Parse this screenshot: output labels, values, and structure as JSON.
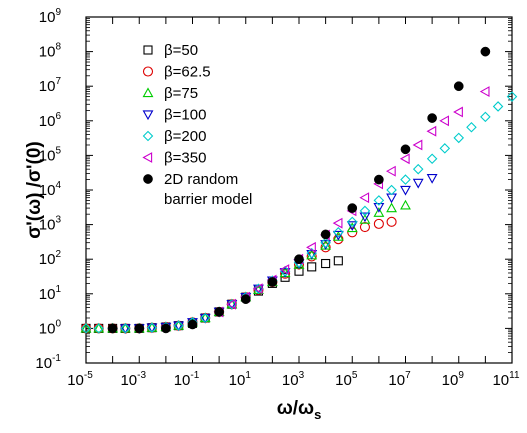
{
  "chart_data": {
    "type": "scatter",
    "title": "",
    "xlabel": {
      "main": "ω/ω",
      "sub": "s"
    },
    "ylabel": "σ'(ω) /σ'(0)",
    "x_scale": "log",
    "y_scale": "log",
    "xlim": [
      1e-05,
      100000000000.0
    ],
    "ylim": [
      0.1,
      1000000000.0
    ],
    "x_tick_exponents": [
      -5,
      -3,
      -1,
      1,
      3,
      5,
      7,
      9,
      11
    ],
    "y_tick_exponents": [
      -1,
      0,
      1,
      2,
      3,
      4,
      5,
      6,
      7,
      8,
      9
    ],
    "tick_base": "10",
    "grid": false,
    "legend_position": "top-left",
    "series": [
      {
        "name": "β=50",
        "marker": "square",
        "color": "#000000",
        "x": [
          1e-05,
          3e-05,
          0.0001,
          0.0003,
          0.001,
          0.003,
          0.01,
          0.03,
          0.1,
          0.3,
          1,
          3,
          10,
          30,
          100,
          300,
          1000,
          3000,
          10000,
          30000
        ],
        "y": [
          1.0,
          1.0,
          1.0,
          1.0,
          1.0,
          1.05,
          1.1,
          1.2,
          1.4,
          2.0,
          3.0,
          5.0,
          8.0,
          12,
          20,
          30,
          45,
          60,
          75,
          90
        ]
      },
      {
        "name": "β=62.5",
        "marker": "circle-open",
        "color": "#dd0000",
        "x": [
          1e-05,
          3e-05,
          0.0001,
          0.0003,
          0.001,
          0.003,
          0.01,
          0.03,
          0.1,
          0.3,
          1,
          3,
          10,
          30,
          100,
          300,
          1000,
          3000,
          10000,
          30000,
          100000,
          300000,
          1000000,
          3000000
        ],
        "y": [
          1.0,
          1.0,
          1.0,
          1.0,
          1.0,
          1.05,
          1.1,
          1.2,
          1.5,
          2.0,
          3.0,
          5.0,
          8.0,
          13,
          22,
          38,
          70,
          120,
          220,
          380,
          600,
          850,
          1050,
          1200
        ]
      },
      {
        "name": "β=75",
        "marker": "triangle-up",
        "color": "#00cc00",
        "x": [
          1e-05,
          3e-05,
          0.0001,
          0.0003,
          0.001,
          0.003,
          0.01,
          0.03,
          0.1,
          0.3,
          1,
          3,
          10,
          30,
          100,
          300,
          1000,
          3000,
          10000,
          30000,
          100000,
          300000,
          1000000,
          3000000,
          10000000
        ],
        "y": [
          1.0,
          1.0,
          1.0,
          1.0,
          1.0,
          1.05,
          1.1,
          1.2,
          1.5,
          2.0,
          3.0,
          5.0,
          8.0,
          13,
          22,
          40,
          70,
          130,
          250,
          450,
          800,
          1400,
          2200,
          3000,
          3600
        ]
      },
      {
        "name": "β=100",
        "marker": "triangle-down",
        "color": "#0000cc",
        "x": [
          0.0003,
          0.001,
          0.003,
          0.01,
          0.03,
          0.1,
          0.3,
          1,
          3,
          10,
          30,
          100,
          300,
          1000,
          3000,
          10000,
          30000,
          100000,
          300000,
          1000000,
          3000000,
          10000000,
          30000000,
          100000000
        ],
        "y": [
          1.0,
          1.0,
          1.05,
          1.1,
          1.2,
          1.5,
          2.0,
          3.0,
          5.0,
          8.0,
          14,
          24,
          42,
          75,
          140,
          270,
          500,
          950,
          1700,
          3200,
          6000,
          10000,
          16000,
          22000
        ]
      },
      {
        "name": "β=200",
        "marker": "diamond",
        "color": "#00cccc",
        "x": [
          1e-05,
          3e-05,
          0.0001,
          0.0003,
          0.001,
          0.003,
          0.01,
          0.03,
          0.1,
          0.3,
          1,
          3,
          10,
          30,
          100,
          300,
          1000,
          3000,
          10000,
          30000,
          100000,
          300000,
          1000000,
          3000000,
          10000000,
          30000000,
          100000000,
          300000000,
          1000000000,
          3000000000,
          10000000000,
          30000000000,
          100000000000
        ],
        "y": [
          1.0,
          1.0,
          1.0,
          1.0,
          1.0,
          1.05,
          1.1,
          1.2,
          1.5,
          2.0,
          3.0,
          5.0,
          8.0,
          14,
          24,
          45,
          80,
          150,
          300,
          600,
          1200,
          2500,
          5000,
          10000,
          20000,
          40000,
          80000,
          160000,
          320000,
          650000,
          1300000,
          2600000,
          5000000
        ]
      },
      {
        "name": "β=350",
        "marker": "triangle-left",
        "color": "#cc00cc",
        "x": [
          1,
          3,
          10,
          30,
          100,
          300,
          1000,
          3000,
          10000,
          30000,
          100000,
          300000,
          1000000,
          3000000,
          10000000,
          30000000,
          100000000,
          300000000,
          1000000000,
          10000000000
        ],
        "y": [
          3.0,
          5.0,
          8.0,
          14,
          25,
          50,
          100,
          220,
          500,
          1100,
          2500,
          6000,
          15000,
          35000,
          80000,
          200000,
          500000,
          1000000,
          1800000,
          7000000
        ]
      },
      {
        "name": "2D random barrier model",
        "marker": "circle-filled",
        "color": "#000000",
        "x": [
          0.0001,
          0.001,
          0.01,
          0.1,
          1,
          10,
          100,
          1000,
          10000,
          100000,
          1000000,
          10000000,
          100000000,
          1000000000,
          10000000000
        ],
        "y": [
          1.0,
          1.0,
          1.0,
          1.3,
          3.0,
          7.0,
          22,
          100,
          520,
          3000,
          20000,
          150000,
          1200000,
          10000000,
          100000000
        ]
      }
    ]
  }
}
